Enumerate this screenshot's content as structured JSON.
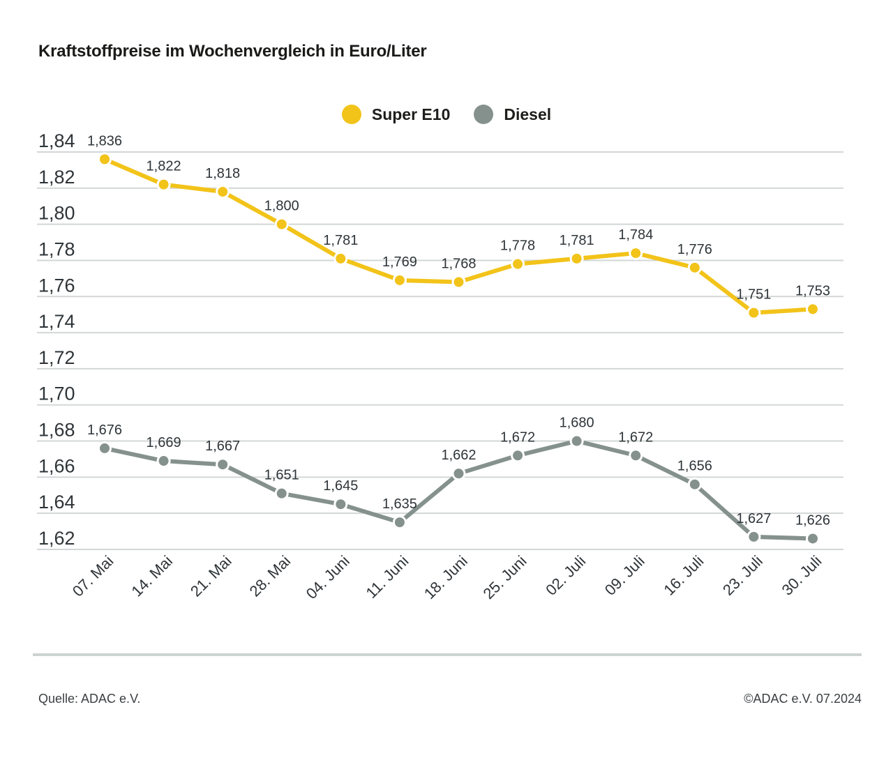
{
  "title": "Kraftstoffpreise im Wochenvergleich in Euro/Liter",
  "legend": [
    {
      "label": "Super E10",
      "color": "#F2C319"
    },
    {
      "label": "Diesel",
      "color": "#85918D"
    }
  ],
  "colors": {
    "super_e10": "#F2C319",
    "diesel": "#85918D",
    "grid": "#D2D7D6",
    "axis_text": "#2E3438",
    "label_text": "#2E3438",
    "divider": "#CDD3D2",
    "point_ring": "#FFFFFF"
  },
  "chart_data": {
    "type": "line",
    "title": "Kraftstoffpreise im Wochenvergleich in Euro/Liter",
    "xlabel": "",
    "ylabel": "Euro/Liter",
    "ylim": [
      1.62,
      1.84
    ],
    "ytick_step": 0.02,
    "grid": true,
    "legend_position": "top-center",
    "categories": [
      "07. Mai",
      "14. Mai",
      "21. Mai",
      "28. Mai",
      "04. Juni",
      "11. Juni",
      "18. Juni",
      "25. Juni",
      "02. Juli",
      "09. Juli",
      "16. Juli",
      "23. Juli",
      "30. Juli"
    ],
    "ytick_labels": [
      "1,84",
      "1,82",
      "1,80",
      "1,78",
      "1,76",
      "1,74",
      "1,72",
      "1,70",
      "1,68",
      "1,66",
      "1,64",
      "1,62"
    ],
    "series": [
      {
        "name": "Super E10",
        "color": "#F2C319",
        "values": [
          1.836,
          1.822,
          1.818,
          1.8,
          1.781,
          1.769,
          1.768,
          1.778,
          1.781,
          1.784,
          1.776,
          1.751,
          1.753
        ],
        "labels": [
          "1,836",
          "1,822",
          "1,818",
          "1,800",
          "1,781",
          "1,769",
          "1,768",
          "1,778",
          "1,781",
          "1,784",
          "1,776",
          "1,751",
          "1,753"
        ]
      },
      {
        "name": "Diesel",
        "color": "#85918D",
        "values": [
          1.676,
          1.669,
          1.667,
          1.651,
          1.645,
          1.635,
          1.662,
          1.672,
          1.68,
          1.672,
          1.656,
          1.627,
          1.626
        ],
        "labels": [
          "1,676",
          "1,669",
          "1,667",
          "1,651",
          "1,645",
          "1,635",
          "1,662",
          "1,672",
          "1,680",
          "1,672",
          "1,656",
          "1,627",
          "1,626"
        ]
      }
    ]
  },
  "footer": {
    "source": "Quelle: ADAC e.V.",
    "copyright": "©ADAC e.V. 07.2024"
  }
}
